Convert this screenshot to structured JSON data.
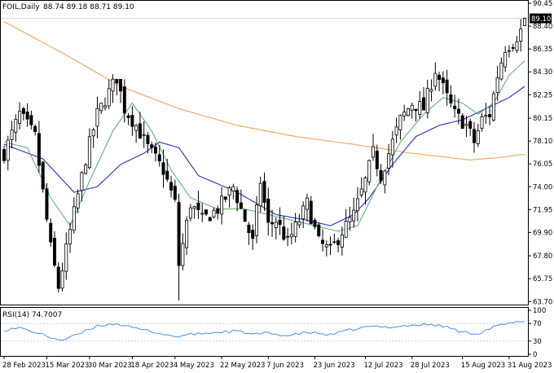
{
  "header": {
    "symbol": "FOIL,Daily",
    "ohlc": "88.74 89.18 88.71 89.10"
  },
  "chart_data": {
    "type": "candlestick",
    "price_axis": {
      "ylim": [
        63.5,
        90.6
      ],
      "ticks": [
        "90.45",
        "88.40",
        "86.35",
        "84.30",
        "82.25",
        "80.15",
        "78.10",
        "76.05",
        "74.00",
        "71.95",
        "69.90",
        "67.80",
        "65.75",
        "63.70"
      ],
      "last_price_label": "89.10",
      "last_price": 89.1
    },
    "x_axis": {
      "labels": [
        {
          "label": "28 Feb 2023",
          "index": 0
        },
        {
          "label": "15 Mar 2023",
          "index": 11
        },
        {
          "label": "30 Mar 2023",
          "index": 22
        },
        {
          "label": "18 Apr 2023",
          "index": 33
        },
        {
          "label": "4 May 2023",
          "index": 44
        },
        {
          "label": "22 May 2023",
          "index": 56
        },
        {
          "label": "7 Jun 2023",
          "index": 68
        },
        {
          "label": "23 Jun 2023",
          "index": 80
        },
        {
          "label": "12 Jul 2023",
          "index": 93
        },
        {
          "label": "28 Jul 2023",
          "index": 105
        },
        {
          "label": "15 Aug 2023",
          "index": 118
        },
        {
          "label": "31 Aug 2023",
          "index": 130
        }
      ]
    },
    "key_points": [
      [
        0,
        77.0
      ],
      [
        4,
        80.5
      ],
      [
        8,
        78.5
      ],
      [
        12,
        68.5
      ],
      [
        14,
        65.0
      ],
      [
        17,
        70.0
      ],
      [
        21,
        76.5
      ],
      [
        24,
        80.5
      ],
      [
        29,
        83.8
      ],
      [
        31,
        81.0
      ],
      [
        34,
        79.5
      ],
      [
        37,
        77.5
      ],
      [
        41,
        75.5
      ],
      [
        44,
        72.5
      ],
      [
        45,
        67.0
      ],
      [
        48,
        72.5
      ],
      [
        51,
        71.0
      ],
      [
        55,
        72.0
      ],
      [
        59,
        74.0
      ],
      [
        62,
        71.0
      ],
      [
        64,
        69.0
      ],
      [
        66,
        74.5
      ],
      [
        68,
        70.5
      ],
      [
        70,
        71.0
      ],
      [
        73,
        69.0
      ],
      [
        76,
        71.0
      ],
      [
        78,
        72.5
      ],
      [
        81,
        69.0
      ],
      [
        84,
        68.2
      ],
      [
        87,
        70.0
      ],
      [
        90,
        71.5
      ],
      [
        93,
        74.5
      ],
      [
        95,
        77.0
      ],
      [
        97,
        75.0
      ],
      [
        99,
        77.0
      ],
      [
        102,
        80.0
      ],
      [
        105,
        81.5
      ],
      [
        108,
        81.0
      ],
      [
        111,
        84.5
      ],
      [
        114,
        82.0
      ],
      [
        116,
        80.5
      ],
      [
        119,
        79.5
      ],
      [
        121,
        78.0
      ],
      [
        123,
        80.0
      ],
      [
        125,
        80.5
      ],
      [
        127,
        84.0
      ],
      [
        129,
        86.5
      ],
      [
        131,
        87.0
      ],
      [
        133,
        88.0
      ],
      [
        134,
        89.1
      ]
    ],
    "sma_200_key_points": [
      [
        0,
        88.8
      ],
      [
        15,
        86.0
      ],
      [
        30,
        83.0
      ],
      [
        45,
        81.0
      ],
      [
        60,
        79.5
      ],
      [
        75,
        78.5
      ],
      [
        90,
        77.8
      ],
      [
        105,
        77.0
      ],
      [
        120,
        76.4
      ],
      [
        127,
        76.6
      ],
      [
        134,
        76.9
      ]
    ],
    "sma_fast_key_points": [
      [
        0,
        77.8
      ],
      [
        10,
        76.5
      ],
      [
        18,
        73.5
      ],
      [
        24,
        74.0
      ],
      [
        30,
        76.0
      ],
      [
        36,
        77.0
      ],
      [
        40,
        78.0
      ],
      [
        45,
        77.5
      ],
      [
        50,
        75.0
      ],
      [
        60,
        73.5
      ],
      [
        65,
        72.5
      ],
      [
        70,
        71.5
      ],
      [
        78,
        71.0
      ],
      [
        84,
        70.5
      ],
      [
        90,
        71.5
      ],
      [
        94,
        73.0
      ],
      [
        100,
        76.0
      ],
      [
        106,
        78.5
      ],
      [
        112,
        79.5
      ],
      [
        118,
        80.0
      ],
      [
        124,
        81.0
      ],
      [
        130,
        82.0
      ],
      [
        134,
        83.0
      ]
    ],
    "sma_mid_key_points": [
      [
        0,
        78.0
      ],
      [
        6,
        77.5
      ],
      [
        12,
        73.0
      ],
      [
        17,
        70.5
      ],
      [
        22,
        74.5
      ],
      [
        28,
        79.0
      ],
      [
        33,
        81.5
      ],
      [
        38,
        79.0
      ],
      [
        43,
        75.5
      ],
      [
        48,
        73.0
      ],
      [
        55,
        72.0
      ],
      [
        62,
        72.0
      ],
      [
        68,
        71.5
      ],
      [
        74,
        71.0
      ],
      [
        80,
        70.5
      ],
      [
        86,
        70.0
      ],
      [
        91,
        70.5
      ],
      [
        96,
        74.0
      ],
      [
        102,
        78.0
      ],
      [
        108,
        80.5
      ],
      [
        113,
        82.0
      ],
      [
        118,
        81.5
      ],
      [
        122,
        80.5
      ],
      [
        126,
        81.5
      ],
      [
        130,
        84.0
      ],
      [
        134,
        85.3
      ]
    ],
    "rsi": {
      "label": "RSI(14) 74.7007",
      "ticks": [
        "100",
        "70",
        "30",
        "0"
      ],
      "ylim": [
        0,
        100
      ],
      "levels": [
        70,
        30
      ],
      "key_points": [
        [
          0,
          55
        ],
        [
          4,
          60
        ],
        [
          8,
          50
        ],
        [
          12,
          38
        ],
        [
          15,
          32
        ],
        [
          19,
          45
        ],
        [
          24,
          65
        ],
        [
          29,
          70
        ],
        [
          33,
          60
        ],
        [
          38,
          52
        ],
        [
          44,
          40
        ],
        [
          48,
          45
        ],
        [
          55,
          50
        ],
        [
          60,
          53
        ],
        [
          64,
          45
        ],
        [
          68,
          48
        ],
        [
          73,
          42
        ],
        [
          78,
          50
        ],
        [
          84,
          44
        ],
        [
          89,
          55
        ],
        [
          94,
          63
        ],
        [
          99,
          62
        ],
        [
          105,
          66
        ],
        [
          110,
          68
        ],
        [
          114,
          62
        ],
        [
          118,
          50
        ],
        [
          122,
          47
        ],
        [
          126,
          62
        ],
        [
          130,
          70
        ],
        [
          134,
          75
        ]
      ]
    }
  }
}
